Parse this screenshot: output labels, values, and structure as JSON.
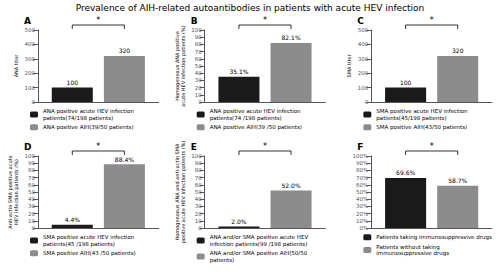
{
  "title": "Prevalence of AIH-related autoantibodies in patients with acute HEV infection",
  "chart_data": [
    {
      "type": "bar",
      "title": "A",
      "ylabel": "ANA titer",
      "categories": [
        null
      ],
      "series": [
        {
          "name": "ANA positive acute HEV infection patients(74/198 patients)",
          "color": "#1a1a1a",
          "values": [
            100
          ]
        },
        {
          "name": "ANA positive AIH(39/50 patients)",
          "color": "#8c8c8c",
          "values": [
            320
          ]
        }
      ],
      "ylim": [
        0,
        500
      ],
      "yticks": [
        0,
        100,
        200,
        300,
        400,
        500
      ],
      "data_labels": true,
      "annotations": [
        "*"
      ],
      "legend": "bottom",
      "grid": false,
      "tick_labels": "y"
    },
    {
      "type": "bar",
      "title": "B",
      "ylabel": "Homogeneous ANA positive\nacute HEV infection patients (%)",
      "categories": [
        null
      ],
      "series": [
        {
          "name": "ANA positive acute HEV infection patients(74 /198 patients)",
          "color": "#1a1a1a",
          "values": [
            35.1
          ],
          "value_labels": [
            "35.1%"
          ]
        },
        {
          "name": "ANA positive AIH(39 /50 patients)",
          "color": "#8c8c8c",
          "values": [
            82.1
          ],
          "value_labels": [
            "82.1%"
          ]
        }
      ],
      "ylim": [
        0,
        100
      ],
      "yticks": [
        0,
        10,
        20,
        30,
        40,
        50,
        60,
        70,
        80,
        90,
        100
      ],
      "data_labels": true,
      "annotations": [
        "*"
      ],
      "legend": "bottom",
      "grid": false,
      "tick_labels": "y"
    },
    {
      "type": "bar",
      "title": "C",
      "ylabel": "SMA titer",
      "categories": [
        null
      ],
      "series": [
        {
          "name": "SMA positive acute HEV infection patients(45/198 patients)",
          "color": "#1a1a1a",
          "values": [
            100
          ]
        },
        {
          "name": "SMA positive AIH(43/50 patients)",
          "color": "#8c8c8c",
          "values": [
            320
          ]
        }
      ],
      "ylim": [
        0,
        500
      ],
      "yticks": [
        0,
        100,
        200,
        300,
        400,
        500
      ],
      "data_labels": true,
      "annotations": [
        "*"
      ],
      "legend": "bottom",
      "grid": false,
      "tick_labels": "y"
    },
    {
      "type": "bar",
      "title": "D",
      "ylabel": "Anti-actin SMA positive acute\nHEV infection patients (%)",
      "categories": [
        null
      ],
      "series": [
        {
          "name": "SMA positive acute HEV infection patients(45 /198 patients)",
          "color": "#1a1a1a",
          "values": [
            4.4
          ],
          "value_labels": [
            "4.4%"
          ]
        },
        {
          "name": "SMA positive AIH(43 /50 patients)",
          "color": "#8c8c8c",
          "values": [
            88.4
          ],
          "value_labels": [
            "88.4%"
          ]
        }
      ],
      "ylim": [
        0,
        100
      ],
      "yticks": [
        0,
        10,
        20,
        30,
        40,
        50,
        60,
        70,
        80,
        90,
        100
      ],
      "data_labels": true,
      "annotations": [
        "*"
      ],
      "legend": "bottom",
      "grid": false,
      "tick_labels": "y"
    },
    {
      "type": "bar",
      "title": "E",
      "ylabel": "Homogeneous ANA and anti-actin SMA\npositive acute HEV infection patients (%)",
      "categories": [
        null
      ],
      "series": [
        {
          "name": "ANA and/or SMA positive acute HEV infection patients(99 /198 patients)",
          "color": "#1a1a1a",
          "values": [
            2.0
          ],
          "value_labels": [
            "2.0%"
          ]
        },
        {
          "name": "ANA and/or SMA positive AIH(50/50 patients)",
          "color": "#8c8c8c",
          "values": [
            52.0
          ],
          "value_labels": [
            "52.0%"
          ]
        }
      ],
      "ylim": [
        0,
        100
      ],
      "yticks": [
        0,
        10,
        20,
        30,
        40,
        50,
        60,
        70,
        80,
        90,
        100
      ],
      "data_labels": true,
      "annotations": [
        "*"
      ],
      "legend": "bottom",
      "grid": false,
      "tick_labels": "y"
    },
    {
      "type": "bar",
      "title": "F",
      "categories": [
        null
      ],
      "series": [
        {
          "name": "Patients taking immunosuppressive drugs",
          "color": "#1a1a1a",
          "values": [
            69.6
          ],
          "value_labels": [
            "69.6%"
          ]
        },
        {
          "name": "Patients without taking immunosuppressive drugs",
          "color": "#8c8c8c",
          "values": [
            58.7
          ],
          "value_labels": [
            "58.7%"
          ]
        }
      ],
      "ylim": [
        0,
        100
      ],
      "yticks": [
        {
          "value": 0,
          "label": "0%"
        },
        {
          "value": 10,
          "label": "10%"
        },
        {
          "value": 20,
          "label": "20%"
        },
        {
          "value": 30,
          "label": "30%"
        },
        {
          "value": 40,
          "label": "40%"
        },
        {
          "value": 50,
          "label": "50%"
        },
        {
          "value": 60,
          "label": "60%"
        },
        {
          "value": 70,
          "label": "70%"
        },
        {
          "value": 80,
          "label": "80%"
        },
        {
          "value": 90,
          "label": "90%"
        },
        {
          "value": 100,
          "label": "100%"
        }
      ],
      "data_labels": true,
      "annotations": [
        "*"
      ],
      "legend": "bottom",
      "grid": false,
      "tick_labels": "y"
    }
  ]
}
